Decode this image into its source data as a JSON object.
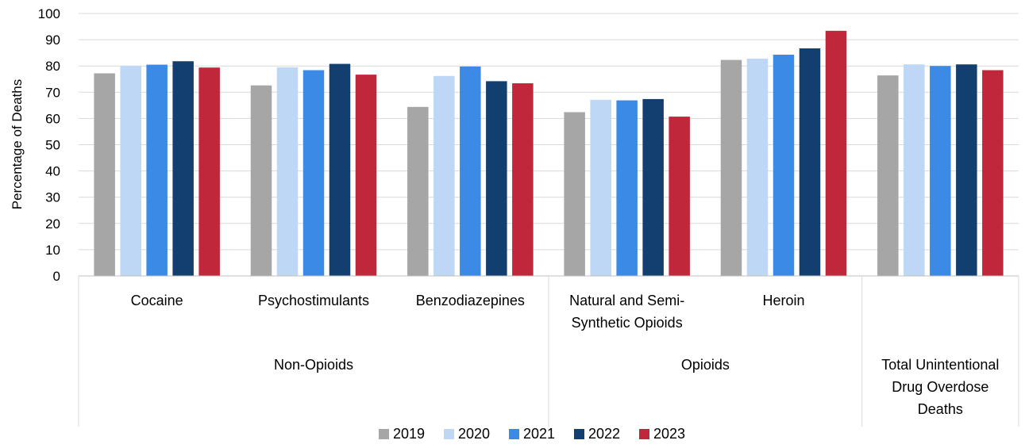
{
  "chart_data": {
    "type": "bar",
    "ylabel": "Percentage of Deaths",
    "ylim": [
      0,
      100
    ],
    "yticks": [
      0,
      10,
      20,
      30,
      40,
      50,
      60,
      70,
      80,
      90,
      100
    ],
    "grid": true,
    "legend_position": "bottom",
    "groups": [
      {
        "label": [
          "Non-Opioids"
        ],
        "categories": [
          0,
          1,
          2
        ]
      },
      {
        "label": [
          "Opioids"
        ],
        "categories": [
          3,
          4
        ]
      },
      {
        "label": [
          "Total Unintentional",
          "Drug Overdose",
          "Deaths"
        ],
        "categories": [
          5
        ]
      }
    ],
    "categories": [
      [
        "Cocaine"
      ],
      [
        "Psychostimulants"
      ],
      [
        "Benzodiazepines"
      ],
      [
        "Natural and Semi-",
        "Synthetic Opioids"
      ],
      [
        "Heroin"
      ],
      [
        ""
      ]
    ],
    "series": [
      {
        "name": "2019",
        "color": "#a6a6a6",
        "values": [
          77.2,
          72.6,
          64.4,
          62.4,
          82.3,
          76.4
        ]
      },
      {
        "name": "2020",
        "color": "#bdd7f5",
        "values": [
          80.0,
          79.5,
          76.2,
          67.1,
          82.8,
          80.6
        ]
      },
      {
        "name": "2021",
        "color": "#3a8ae6",
        "values": [
          80.5,
          78.4,
          79.8,
          66.9,
          84.3,
          80.0
        ]
      },
      {
        "name": "2022",
        "color": "#123f70",
        "values": [
          81.8,
          80.8,
          74.2,
          67.4,
          86.7,
          80.6
        ]
      },
      {
        "name": "2023",
        "color": "#c0273a",
        "values": [
          79.4,
          76.7,
          73.4,
          60.7,
          93.4,
          78.4
        ]
      }
    ]
  }
}
